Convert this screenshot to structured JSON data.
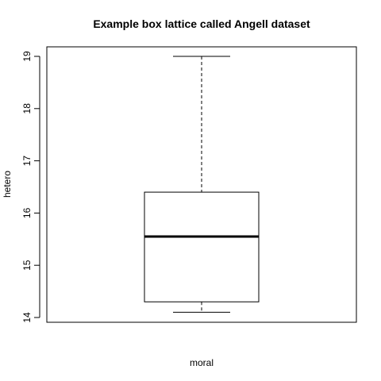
{
  "chart_data": {
    "type": "box",
    "title": "Example box lattice called Angell dataset",
    "xlabel": "moral",
    "ylabel": "hetero",
    "ylim": [
      14,
      19.2
    ],
    "yticks": [
      "14",
      "15",
      "16",
      "17",
      "18",
      "19"
    ],
    "box": {
      "min": 14.1,
      "q1": 14.3,
      "median": 15.55,
      "q3": 16.4,
      "max": 19.0
    },
    "grid": false,
    "colors": {
      "stroke": "#000000",
      "background": "#ffffff"
    }
  }
}
